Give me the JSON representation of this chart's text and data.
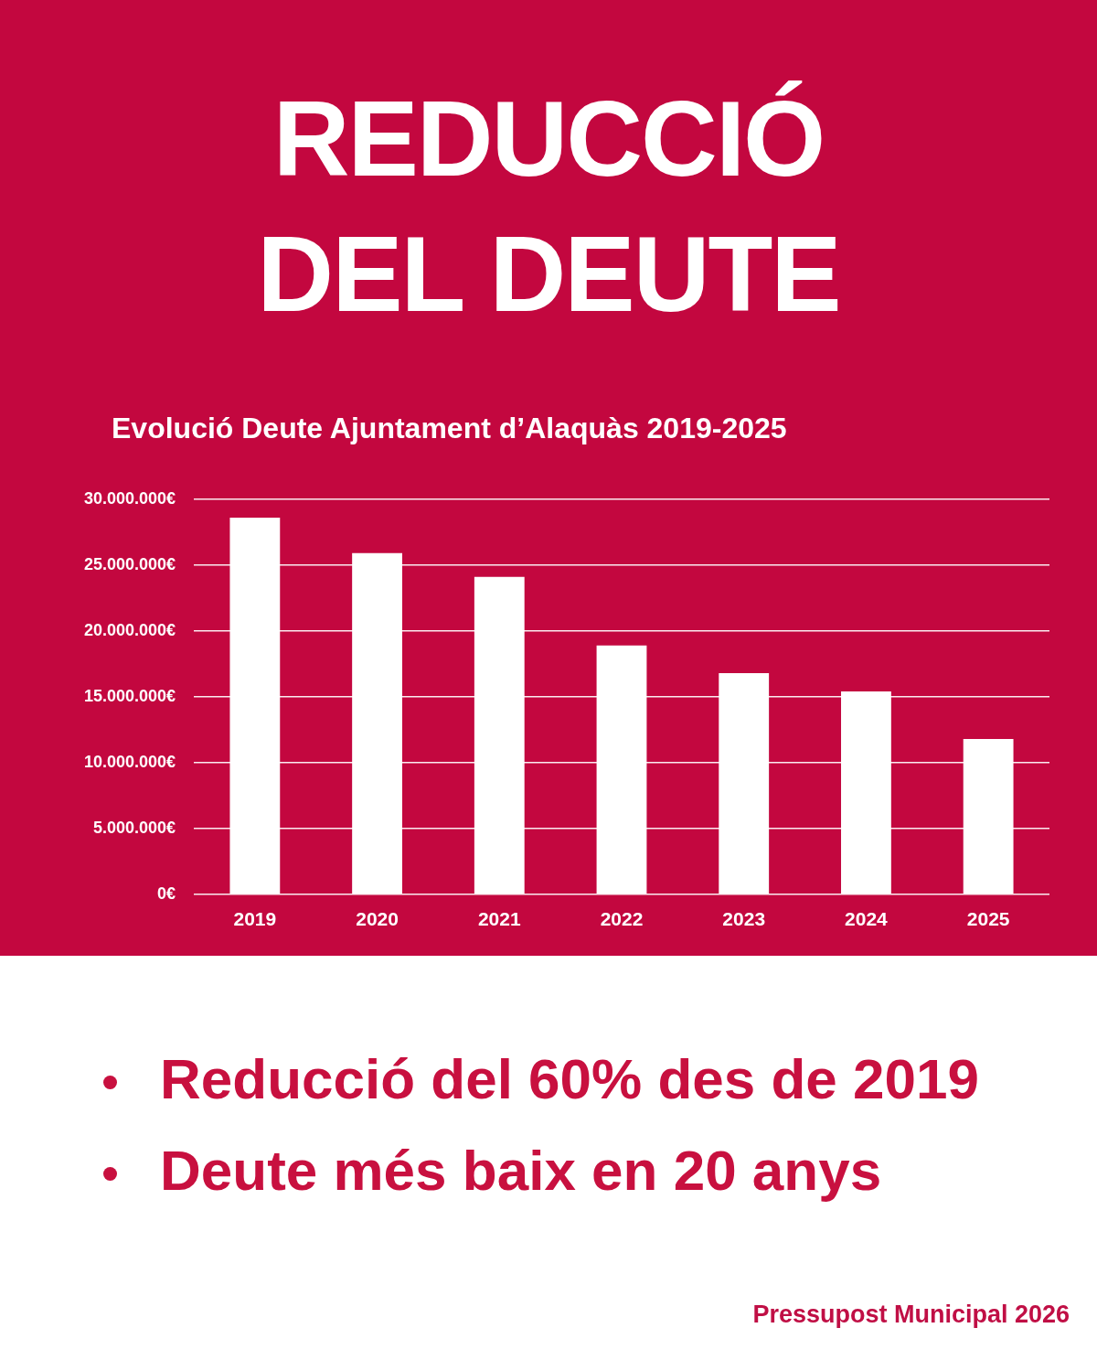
{
  "chart_data": {
    "type": "bar",
    "title": "REDUCCIÓ DEL DEUTE",
    "subtitle": "Evolució Deute Ajuntament d’Alaquàs 2019-2025",
    "categories": [
      "2019",
      "2020",
      "2021",
      "2022",
      "2023",
      "2024",
      "2025"
    ],
    "values": [
      28600000,
      25900000,
      24100000,
      18900000,
      16800000,
      15400000,
      11800000
    ],
    "color": "#ffffff",
    "ylim": [
      0,
      30000000
    ],
    "yticks": [
      {
        "value": 0,
        "label": "0€"
      },
      {
        "value": 5000000,
        "label": "5.000.000€"
      },
      {
        "value": 10000000,
        "label": "10.000.000€"
      },
      {
        "value": 15000000,
        "label": "15.000.000€"
      },
      {
        "value": 20000000,
        "label": "20.000.000€"
      },
      {
        "value": 25000000,
        "label": "25.000.000€"
      },
      {
        "value": 30000000,
        "label": "30.000.000€"
      }
    ],
    "grid": "y",
    "annotations": [
      "Reducció del 60% des de 2019",
      "Deute més baix en 20 anys",
      "Pressupost Municipal 2026"
    ]
  }
}
